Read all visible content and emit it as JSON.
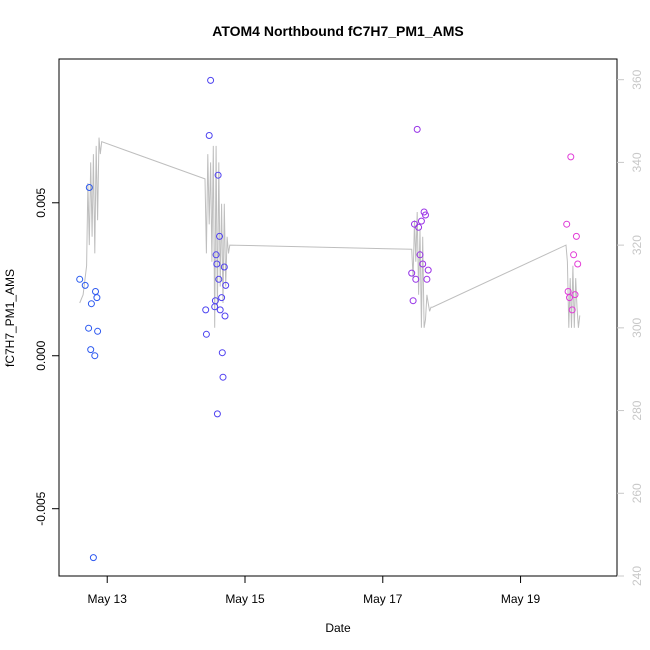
{
  "chart_data": {
    "type": "scatter",
    "title": "ATOM4 Northbound fC7H7_PM1_AMS",
    "xlabel": "Date",
    "ylabel": "fC7H7_PM1_AMS",
    "x_ticks": [
      "May 13",
      "May 15",
      "May 17",
      "May 19"
    ],
    "x_tick_values": [
      13,
      15,
      17,
      19
    ],
    "xlim": [
      12.3,
      20.4
    ],
    "ylim": [
      -0.0072,
      0.0097
    ],
    "y_ticks": [
      -0.005,
      0.0,
      0.005
    ],
    "y_tick_labels": [
      "-0.005",
      "0.000",
      "0.005"
    ],
    "y2lim": [
      240,
      365
    ],
    "y2_ticks": [
      240,
      260,
      280,
      300,
      320,
      340,
      360
    ],
    "y2_tick_labels": [
      "240",
      "260",
      "280",
      "300",
      "320",
      "340",
      "360"
    ],
    "grid": false,
    "colors": {
      "axis": "#000000",
      "secondary_axis": "#c8c8c8",
      "line": "#bebebe",
      "point_start": "#2a5cf0",
      "point_mid": "#6d2cf0",
      "point_end": "#e33cd6"
    },
    "series": [
      {
        "kind": "points",
        "x_day": [
          12.6,
          12.68,
          12.73,
          12.74,
          12.76,
          12.77,
          12.8,
          12.82,
          12.83,
          12.85,
          12.86,
          14.43,
          14.44,
          14.48,
          14.5,
          14.56,
          14.57,
          14.58,
          14.59,
          14.6,
          14.61,
          14.62,
          14.63,
          14.64,
          14.66,
          14.67,
          14.68,
          14.7,
          14.71,
          14.72,
          17.42,
          17.44,
          17.46,
          17.48,
          17.5,
          17.52,
          17.54,
          17.56,
          17.58,
          17.6,
          17.62,
          17.64,
          17.66,
          19.67,
          19.69,
          19.71,
          19.73,
          19.75,
          19.77,
          19.79,
          19.81,
          19.83
        ],
        "y": [
          0.0025,
          0.0023,
          0.0009,
          0.0055,
          0.0002,
          0.0017,
          -0.0066,
          0.0,
          0.0021,
          0.0019,
          0.0008,
          0.0015,
          0.0007,
          0.0072,
          0.009,
          0.0016,
          0.0018,
          0.0033,
          0.003,
          -0.0019,
          0.0059,
          0.0025,
          0.0039,
          0.0015,
          0.0019,
          0.0001,
          -0.0007,
          0.0029,
          0.0013,
          0.0023,
          0.0027,
          0.0018,
          0.0043,
          0.0025,
          0.0074,
          0.0042,
          0.0033,
          0.0044,
          0.003,
          0.0047,
          0.0046,
          0.0025,
          0.0028,
          0.0043,
          0.0021,
          0.0019,
          0.0065,
          0.0015,
          0.0033,
          0.002,
          0.0039,
          0.003
        ]
      },
      {
        "kind": "line",
        "axis": "right",
        "x_day": [
          12.6,
          12.65,
          12.7,
          12.72,
          12.74,
          12.76,
          12.78,
          12.8,
          12.82,
          12.84,
          12.86,
          12.88,
          12.9,
          12.92,
          14.42,
          14.44,
          14.46,
          14.48,
          14.5,
          14.52,
          14.54,
          14.56,
          14.58,
          14.6,
          14.62,
          14.64,
          14.66,
          14.68,
          14.7,
          14.72,
          14.74,
          14.76,
          14.78,
          17.42,
          17.44,
          17.46,
          17.48,
          17.5,
          17.52,
          17.54,
          17.56,
          17.58,
          17.6,
          17.62,
          17.64,
          17.66,
          17.68,
          17.7,
          17.72,
          19.66,
          19.68,
          19.7,
          19.72,
          19.74,
          19.76,
          19.78,
          19.8,
          19.82,
          19.84,
          19.86
        ],
        "y": [
          306,
          308,
          315,
          335,
          320,
          340,
          322,
          342,
          318,
          344,
          326,
          346,
          342,
          345,
          336,
          318,
          342,
          325,
          340,
          316,
          344,
          300,
          344,
          304,
          340,
          310,
          330,
          306,
          330,
          310,
          322,
          318,
          320,
          319,
          312,
          326,
          316,
          328,
          308,
          324,
          300,
          322,
          300,
          302,
          308,
          306,
          304,
          305,
          305,
          320,
          316,
          300,
          312,
          300,
          315,
          300,
          312,
          305,
          300,
          303
        ]
      }
    ]
  }
}
